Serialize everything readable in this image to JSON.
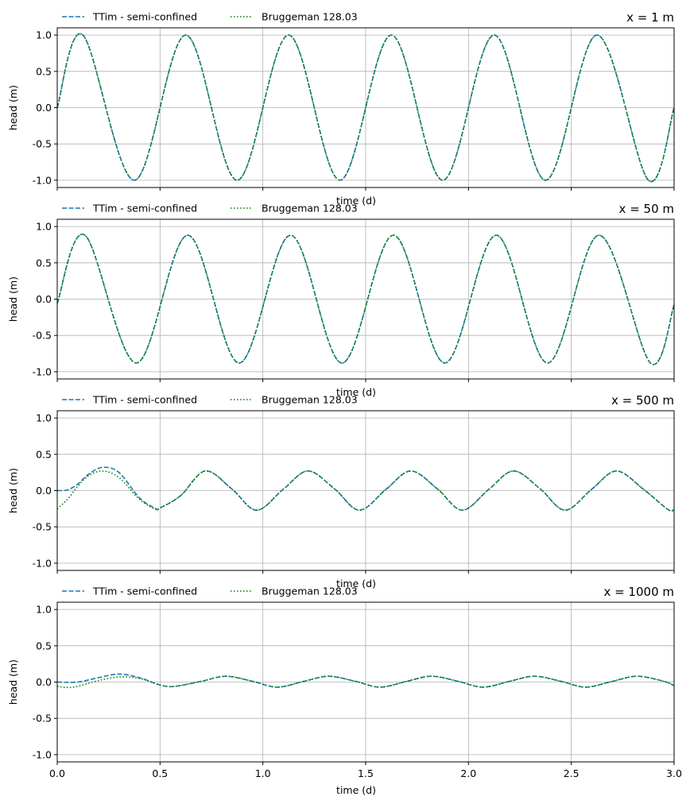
{
  "chart_data": [
    {
      "type": "line",
      "title": "x = 1 m",
      "xlabel": "time (d)",
      "ylabel": "head (m)",
      "xlim": [
        0,
        3
      ],
      "ylim": [
        -1.1,
        1.1
      ],
      "grid": true,
      "legend_position": "top-left, outside axes",
      "show_xticklabels": false,
      "xticks": [
        "0.0",
        "0.5",
        "1.0",
        "1.5",
        "2.0",
        "2.5",
        "3.0"
      ],
      "yticks": [
        "-1.0",
        "-0.5",
        "0.0",
        "0.5",
        "1.0"
      ],
      "series": [
        {
          "name": "TTim - semi-confined",
          "style": "dashed",
          "color": "#1f77b4",
          "x": [
            0,
            0.125,
            0.375,
            0.625,
            0.875,
            1.125,
            1.375,
            1.625,
            1.875,
            2.125,
            2.375,
            2.625,
            2.875,
            3.0
          ],
          "y": [
            0,
            1.0,
            -1.0,
            1.0,
            -1.0,
            1.0,
            -1.0,
            1.0,
            -1.0,
            1.0,
            -1.0,
            1.0,
            -1.0,
            0
          ]
        },
        {
          "name": "Bruggeman 128.03",
          "style": "dotted",
          "color": "#008000",
          "x": [
            0,
            0.125,
            0.375,
            0.625,
            0.875,
            1.125,
            1.375,
            1.625,
            1.875,
            2.125,
            2.375,
            2.625,
            2.875,
            3.0
          ],
          "y": [
            0,
            1.0,
            -1.0,
            1.0,
            -1.0,
            1.0,
            -1.0,
            1.0,
            -1.0,
            1.0,
            -1.0,
            1.0,
            -1.0,
            0
          ]
        }
      ]
    },
    {
      "type": "line",
      "title": "x = 50 m",
      "xlabel": "time (d)",
      "ylabel": "head (m)",
      "xlim": [
        0,
        3
      ],
      "ylim": [
        -1.1,
        1.1
      ],
      "grid": true,
      "legend_position": "top-left, outside axes",
      "show_xticklabels": false,
      "xticks": [
        "0.0",
        "0.5",
        "1.0",
        "1.5",
        "2.0",
        "2.5",
        "3.0"
      ],
      "yticks": [
        "-1.0",
        "-0.5",
        "0.0",
        "0.5",
        "1.0"
      ],
      "series": [
        {
          "name": "TTim - semi-confined",
          "style": "dashed",
          "color": "#1f77b4",
          "x": [
            0,
            0.135,
            0.385,
            0.635,
            0.885,
            1.135,
            1.385,
            1.635,
            1.885,
            2.135,
            2.385,
            2.635,
            2.885,
            3.0
          ],
          "y": [
            -0.06,
            0.88,
            -0.88,
            0.88,
            -0.88,
            0.88,
            -0.88,
            0.88,
            -0.88,
            0.88,
            -0.88,
            0.88,
            -0.88,
            -0.08
          ]
        },
        {
          "name": "Bruggeman 128.03",
          "style": "dotted",
          "color": "#008000",
          "x": [
            0,
            0.135,
            0.385,
            0.635,
            0.885,
            1.135,
            1.385,
            1.635,
            1.885,
            2.135,
            2.385,
            2.635,
            2.885,
            3.0
          ],
          "y": [
            -0.06,
            0.88,
            -0.88,
            0.88,
            -0.88,
            0.88,
            -0.88,
            0.88,
            -0.88,
            0.88,
            -0.88,
            0.88,
            -0.88,
            -0.08
          ]
        }
      ]
    },
    {
      "type": "line",
      "title": "x = 500 m",
      "xlabel": "time (d)",
      "ylabel": "head (m)",
      "xlim": [
        0,
        3
      ],
      "ylim": [
        -1.1,
        1.1
      ],
      "grid": true,
      "legend_position": "top-left, outside axes",
      "show_xticklabels": false,
      "xticks": [
        "0.0",
        "0.5",
        "1.0",
        "1.5",
        "2.0",
        "2.5",
        "3.0"
      ],
      "yticks": [
        "-1.0",
        "-0.5",
        "0.0",
        "0.5",
        "1.0"
      ],
      "series": [
        {
          "name": "TTim - semi-confined",
          "style": "dashed",
          "color": "#1f77b4",
          "x": [
            0,
            0.05,
            0.1,
            0.15,
            0.22,
            0.3,
            0.4,
            0.48,
            0.5,
            0.6,
            0.72,
            0.85,
            0.97,
            1.1,
            1.22,
            1.35,
            1.47,
            1.6,
            1.72,
            1.85,
            1.97,
            2.1,
            2.22,
            2.35,
            2.47,
            2.6,
            2.72,
            2.85,
            2.97,
            3.0
          ],
          "y": [
            0,
            0.01,
            0.09,
            0.22,
            0.32,
            0.25,
            -0.1,
            -0.25,
            -0.24,
            -0.07,
            0.27,
            0.02,
            -0.27,
            0.02,
            0.27,
            0.02,
            -0.27,
            0.02,
            0.27,
            0.02,
            -0.27,
            0.02,
            0.27,
            0.02,
            -0.27,
            0.02,
            0.27,
            0.02,
            -0.26,
            -0.26
          ]
        },
        {
          "name": "Bruggeman 128.03",
          "style": "dotted",
          "color": "#008000",
          "x": [
            0,
            0.05,
            0.1,
            0.15,
            0.22,
            0.3,
            0.4,
            0.48,
            0.5,
            0.6,
            0.72,
            0.85,
            0.97,
            1.1,
            1.22,
            1.35,
            1.47,
            1.6,
            1.72,
            1.85,
            1.97,
            2.1,
            2.22,
            2.35,
            2.47,
            2.6,
            2.72,
            2.85,
            2.97,
            3.0
          ],
          "y": [
            -0.25,
            -0.12,
            0.06,
            0.2,
            0.27,
            0.18,
            -0.12,
            -0.26,
            -0.24,
            -0.07,
            0.27,
            0.02,
            -0.27,
            0.02,
            0.27,
            0.02,
            -0.27,
            0.02,
            0.27,
            0.02,
            -0.27,
            0.02,
            0.27,
            0.02,
            -0.27,
            0.02,
            0.27,
            0.02,
            -0.26,
            -0.26
          ]
        }
      ]
    },
    {
      "type": "line",
      "title": "x = 1000 m",
      "xlabel": "time (d)",
      "ylabel": "head (m)",
      "xlim": [
        0,
        3
      ],
      "ylim": [
        -1.1,
        1.1
      ],
      "grid": true,
      "legend_position": "top-left, outside axes",
      "show_xticklabels": true,
      "xticks": [
        "0.0",
        "0.5",
        "1.0",
        "1.5",
        "2.0",
        "2.5",
        "3.0"
      ],
      "yticks": [
        "-1.0",
        "-0.5",
        "0.0",
        "0.5",
        "1.0"
      ],
      "series": [
        {
          "name": "TTim - semi-confined",
          "style": "dashed",
          "color": "#1f77b4",
          "x": [
            0,
            0.1,
            0.2,
            0.3,
            0.4,
            0.5,
            0.57,
            0.7,
            0.82,
            0.95,
            1.07,
            1.2,
            1.32,
            1.45,
            1.57,
            1.7,
            1.82,
            1.95,
            2.07,
            2.2,
            2.32,
            2.45,
            2.57,
            2.7,
            2.82,
            2.95,
            3.0
          ],
          "y": [
            0,
            0.0,
            0.06,
            0.11,
            0.06,
            -0.04,
            -0.06,
            0.01,
            0.08,
            0.01,
            -0.07,
            0.01,
            0.08,
            0.01,
            -0.07,
            0.01,
            0.08,
            0.01,
            -0.07,
            0.01,
            0.08,
            0.01,
            -0.07,
            0.01,
            0.08,
            0.01,
            -0.05
          ]
        },
        {
          "name": "Bruggeman 128.03",
          "style": "dotted",
          "color": "#008000",
          "x": [
            0,
            0.08,
            0.2,
            0.3,
            0.4,
            0.5,
            0.57,
            0.7,
            0.82,
            0.95,
            1.07,
            1.2,
            1.32,
            1.45,
            1.57,
            1.7,
            1.82,
            1.95,
            2.07,
            2.2,
            2.32,
            2.45,
            2.57,
            2.7,
            2.82,
            2.95,
            3.0
          ],
          "y": [
            -0.06,
            -0.07,
            0.02,
            0.07,
            0.05,
            -0.04,
            -0.06,
            0.01,
            0.08,
            0.01,
            -0.07,
            0.01,
            0.08,
            0.01,
            -0.07,
            0.01,
            0.08,
            0.01,
            -0.07,
            0.01,
            0.08,
            0.01,
            -0.07,
            0.01,
            0.08,
            0.01,
            -0.05
          ]
        }
      ]
    }
  ]
}
